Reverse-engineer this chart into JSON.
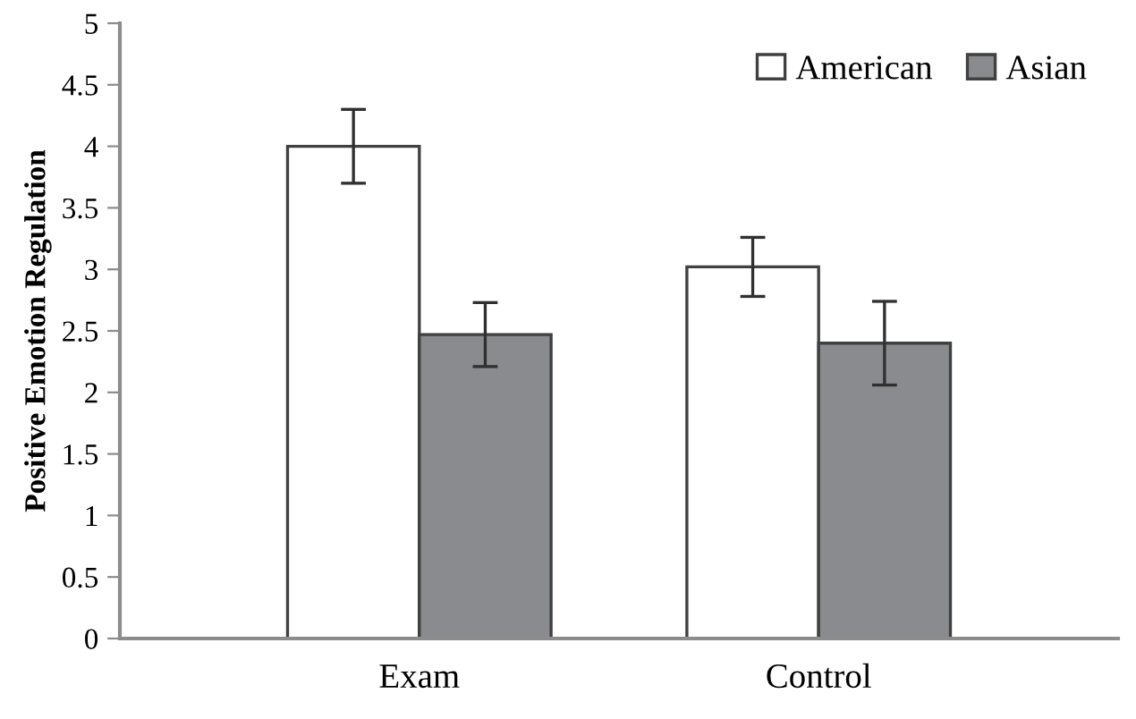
{
  "chart_data": {
    "type": "bar",
    "ylabel": "Positive Emotion Regulation",
    "categories": [
      "Exam",
      "Control"
    ],
    "series": [
      {
        "name": "American",
        "color": "#ffffff",
        "values": [
          4.0,
          3.02
        ],
        "errors": [
          0.3,
          0.24
        ]
      },
      {
        "name": "Asian",
        "color": "#8a8b8e",
        "values": [
          2.47,
          2.4
        ],
        "errors": [
          0.26,
          0.34
        ]
      }
    ],
    "ylim": [
      0,
      5
    ],
    "yticks": [
      0,
      0.5,
      1,
      1.5,
      2,
      2.5,
      3,
      3.5,
      4,
      4.5,
      5
    ],
    "grid": false,
    "legend": "top right"
  }
}
